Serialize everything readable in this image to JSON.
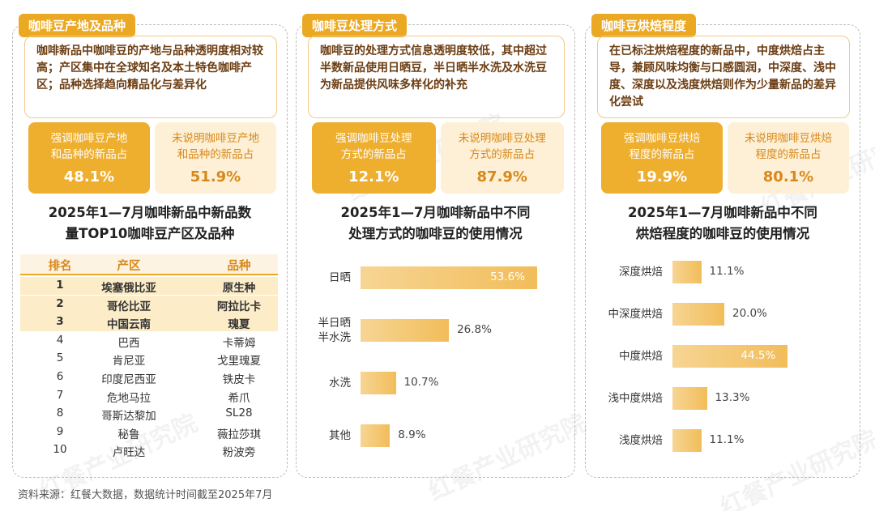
{
  "panels": [
    {
      "title": "咖啡豆产地及品种",
      "description": "咖啡新品中咖啡豆的产地与品种透明度相对较高；产区集中在全球知名及本土特色咖啡产区；品种选择趋向精品化与差异化",
      "stats": [
        {
          "label": "强调咖啡豆产地\n和品种的新品占",
          "value": "48.1%"
        },
        {
          "label": "未说明咖啡豆产地\n和品种的新品占",
          "value": "51.9%"
        }
      ],
      "heading": "2025年1—7月咖啡新品中新品数\n量TOP10咖啡豆产区及品种"
    },
    {
      "title": "咖啡豆处理方式",
      "description": "咖啡豆的处理方式信息透明度较低，其中超过半数新品使用日晒豆，半日晒半水洗及水洗豆为新品提供风味多样化的补充",
      "stats": [
        {
          "label": "强调咖啡豆处理\n方式的新品占",
          "value": "12.1%"
        },
        {
          "label": "未说明咖啡豆处理\n方式的新品占",
          "value": "87.9%"
        }
      ]
    },
    {
      "title": "咖啡豆烘焙程度",
      "description": "在已标注烘焙程度的新品中，中度烘焙占主导，兼顾风味均衡与口感圆润，中深度、浅中度、深度以及浅度烘焙则作为少量新品的差异化尝试",
      "stats": [
        {
          "label": "强调咖啡豆烘焙\n程度的新品占",
          "value": "19.9%"
        },
        {
          "label": "未说明咖啡豆烘焙\n程度的新品占",
          "value": "80.1%"
        }
      ]
    }
  ],
  "table": {
    "header": [
      "排名",
      "产区",
      "品种"
    ],
    "rows": [
      [
        "1",
        "埃塞俄比亚",
        "原生种"
      ],
      [
        "2",
        "哥伦比亚",
        "阿拉比卡"
      ],
      [
        "3",
        "中国云南",
        "瑰夏"
      ],
      [
        "4",
        "巴西",
        "卡蒂姆"
      ],
      [
        "5",
        "肯尼亚",
        "戈里瑰夏"
      ],
      [
        "6",
        "印度尼西亚",
        "铁皮卡"
      ],
      [
        "7",
        "危地马拉",
        "希爪"
      ],
      [
        "8",
        "哥斯达黎加",
        "SL28"
      ],
      [
        "9",
        "秘鲁",
        "薇拉莎琪"
      ],
      [
        "10",
        "卢旺达",
        "粉波旁"
      ]
    ]
  },
  "chart_data": [
    {
      "type": "bar",
      "title": "2025年1—7月咖啡新品中不同\n处理方式的咖啡豆的使用情况",
      "categories": [
        "日晒",
        "半日晒\n半水洗",
        "水洗",
        "其他"
      ],
      "values": [
        53.6,
        26.8,
        10.7,
        8.9
      ],
      "value_labels": [
        "53.6%",
        "26.8%",
        "10.7%",
        "8.9%"
      ],
      "color": "#f2bd5a"
    },
    {
      "type": "bar",
      "title": "2025年1—7月咖啡新品中不同\n烘焙程度的咖啡豆的使用情况",
      "categories": [
        "深度烘焙",
        "中深度烘焙",
        "中度烘焙",
        "浅中度烘焙",
        "浅度烘焙"
      ],
      "values": [
        11.1,
        20.0,
        44.5,
        13.3,
        11.1
      ],
      "value_labels": [
        "11.1%",
        "20.0%",
        "44.5%",
        "13.3%",
        "11.1%"
      ],
      "color": "#f2bd5a"
    }
  ],
  "source": "资料来源：红餐大数据，数据统计时间截至2025年7月",
  "watermark": "红餐产业研究院"
}
